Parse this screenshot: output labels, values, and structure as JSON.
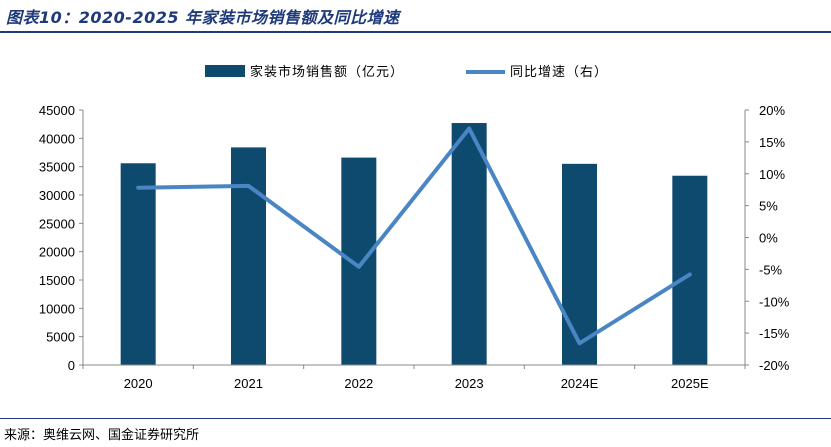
{
  "page": {
    "title": "图表10：2020-2025 年家装市场销售额及同比增速",
    "source": "来源：奥维云网、国金证券研究所"
  },
  "colors": {
    "bar": "#0d4a6e",
    "line": "#4a86c5",
    "rule": "#1f3a7a"
  },
  "chart_data": {
    "type": "bar",
    "categories": [
      "2020",
      "2021",
      "2022",
      "2023",
      "2024E",
      "2025E"
    ],
    "series": [
      {
        "name": "家装市场销售额（亿元）",
        "type": "bar",
        "axis": "left",
        "values": [
          35600,
          38400,
          36600,
          42700,
          35500,
          33400
        ]
      },
      {
        "name": "同比增速（右）",
        "type": "line",
        "axis": "right",
        "values": [
          7.8,
          8.1,
          -4.6,
          17.1,
          -16.6,
          -5.8
        ]
      }
    ],
    "y_left": {
      "min": 0,
      "max": 45000,
      "step": 5000,
      "ticks": [
        "0",
        "5000",
        "10000",
        "15000",
        "20000",
        "25000",
        "30000",
        "35000",
        "40000",
        "45000"
      ]
    },
    "y_right": {
      "min": -20,
      "max": 20,
      "step": 5,
      "ticks": [
        "-20%",
        "-15%",
        "-10%",
        "-5%",
        "0%",
        "5%",
        "10%",
        "15%",
        "20%"
      ]
    },
    "legend_position": "top-center",
    "grid": false
  }
}
